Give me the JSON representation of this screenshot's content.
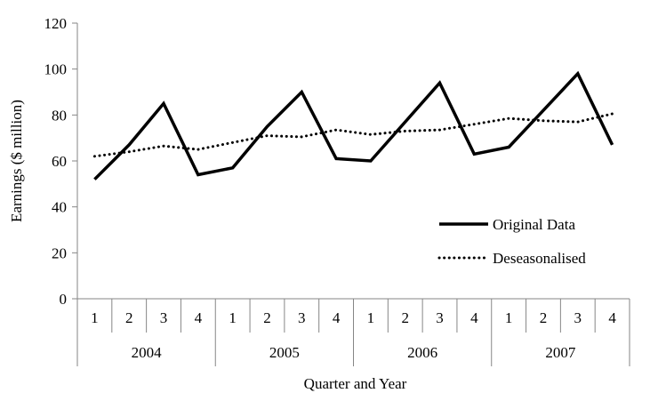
{
  "chart_data": {
    "type": "line",
    "title": "",
    "xlabel": "Quarter and Year",
    "ylabel": "Earnings ($ million)",
    "ylim": [
      0,
      120
    ],
    "yticks": [
      "0",
      "20",
      "40",
      "60",
      "80",
      "100",
      "120"
    ],
    "grid": false,
    "legend_position": "right",
    "categories": [
      "1",
      "2",
      "3",
      "4",
      "1",
      "2",
      "3",
      "4",
      "1",
      "2",
      "3",
      "4",
      "1",
      "2",
      "3",
      "4"
    ],
    "years": [
      "2004",
      "2005",
      "2006",
      "2007"
    ],
    "series": [
      {
        "name": "Original Data",
        "style": "solid",
        "color": "#000000",
        "values": [
          52,
          67,
          85,
          54,
          57,
          75,
          90,
          61,
          60,
          77,
          94,
          63,
          66,
          82,
          98,
          67
        ]
      },
      {
        "name": "Deseasonalised",
        "style": "dotted",
        "color": "#000000",
        "values": [
          62,
          64,
          66.5,
          65,
          68,
          71,
          70.5,
          73.5,
          71.5,
          73,
          73.5,
          76,
          78.5,
          77.5,
          77,
          80.5
        ]
      }
    ]
  }
}
